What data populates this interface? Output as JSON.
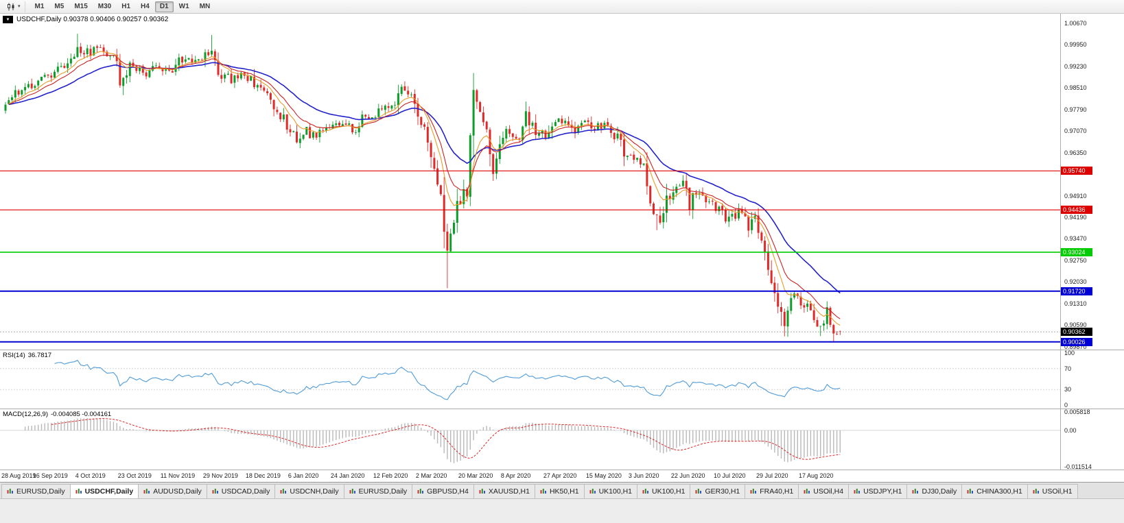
{
  "toolbar": {
    "chart_type_caret": "▾",
    "periods": [
      "M1",
      "M5",
      "M15",
      "M30",
      "H1",
      "H4",
      "D1",
      "W1",
      "MN"
    ],
    "active_period": "D1"
  },
  "chart": {
    "marker": "▼",
    "symbol_period": "USDCHF,Daily",
    "ohlc": "0.90378 0.90406 0.90257 0.90362"
  },
  "rsi_panel": {
    "label": "RSI(14)",
    "value": "36.7817"
  },
  "macd_panel": {
    "label": "MACD(12,26,9)",
    "values": "-0.004085 -0.004161"
  },
  "tabs": [
    {
      "label": "EURUSD,Daily"
    },
    {
      "label": "USDCHF,Daily",
      "active": true
    },
    {
      "label": "AUDUSD,Daily"
    },
    {
      "label": "USDCAD,Daily"
    },
    {
      "label": "USDCNH,Daily"
    },
    {
      "label": "EURUSD,Daily"
    },
    {
      "label": "GBPUSD,H4"
    },
    {
      "label": "XAUUSD,H1"
    },
    {
      "label": "HK50,H1"
    },
    {
      "label": "UK100,H1"
    },
    {
      "label": "UK100,H1"
    },
    {
      "label": "GER30,H1"
    },
    {
      "label": "FRA40,H1"
    },
    {
      "label": "USOil,H4"
    },
    {
      "label": "USDJPY,H1"
    },
    {
      "label": "DJ30,Daily"
    },
    {
      "label": "CHINA300,H1"
    },
    {
      "label": "USOil,H1"
    }
  ],
  "chart_data": {
    "type": "candlestick",
    "symbol": "USDCHF",
    "timeframe": "Daily",
    "seed": 11,
    "total_bars": 256,
    "bars_per_label": 13,
    "first_label_bar": 1,
    "last_ohlc": {
      "open": 0.90378,
      "high": 0.90406,
      "low": 0.90257,
      "close": 0.90362
    },
    "current_price": 0.90362,
    "x_labels": [
      "28 Aug 2019",
      "16 Sep 2019",
      "4 Oct 2019",
      "23 Oct 2019",
      "11 Nov 2019",
      "29 Nov 2019",
      "18 Dec 2019",
      "6 Jan 2020",
      "24 Jan 2020",
      "12 Feb 2020",
      "2 Mar 2020",
      "20 Mar 2020",
      "8 Apr 2020",
      "27 Apr 2020",
      "15 May 2020",
      "3 Jun 2020",
      "22 Jun 2020",
      "10 Jul 2020",
      "29 Jul 2020",
      "17 Aug 2020"
    ],
    "y_axis": {
      "min": 0.8977,
      "max": 1.00991,
      "ticks": [
        1.0067,
        0.9995,
        0.9923,
        0.9851,
        0.9779,
        0.9707,
        0.9635,
        0.9563,
        0.9491,
        0.9419,
        0.9347,
        0.9275,
        0.9203,
        0.9131,
        0.9059,
        0.8987
      ]
    },
    "price_keypoints": [
      [
        0,
        0.9795
      ],
      [
        4,
        0.9842
      ],
      [
        8,
        0.9862
      ],
      [
        12,
        0.9885
      ],
      [
        16,
        0.9915
      ],
      [
        20,
        0.9945
      ],
      [
        23,
        0.9985
      ],
      [
        26,
        0.996
      ],
      [
        29,
        0.999
      ],
      [
        33,
        0.9945
      ],
      [
        36,
        0.9865
      ],
      [
        39,
        0.993
      ],
      [
        43,
        0.9898
      ],
      [
        47,
        0.993
      ],
      [
        50,
        0.9902
      ],
      [
        53,
        0.9938
      ],
      [
        56,
        0.9952
      ],
      [
        59,
        0.9938
      ],
      [
        63,
        0.9975
      ],
      [
        66,
        0.99
      ],
      [
        69,
        0.9878
      ],
      [
        72,
        0.989
      ],
      [
        75,
        0.988
      ],
      [
        78,
        0.9842
      ],
      [
        81,
        0.9805
      ],
      [
        84,
        0.976
      ],
      [
        87,
        0.97
      ],
      [
        89,
        0.9682
      ],
      [
        91,
        0.972
      ],
      [
        94,
        0.969
      ],
      [
        97,
        0.971
      ],
      [
        100,
        0.9725
      ],
      [
        103,
        0.9738
      ],
      [
        106,
        0.9708
      ],
      [
        109,
        0.9745
      ],
      [
        112,
        0.976
      ],
      [
        115,
        0.9775
      ],
      [
        118,
        0.98
      ],
      [
        121,
        0.9848
      ],
      [
        124,
        0.983
      ],
      [
        126,
        0.9778
      ],
      [
        128,
        0.97
      ],
      [
        130,
        0.9645
      ],
      [
        132,
        0.956
      ],
      [
        134,
        0.94
      ],
      [
        135,
        0.929
      ],
      [
        136,
        0.938
      ],
      [
        138,
        0.945
      ],
      [
        140,
        0.952
      ],
      [
        141,
        0.948
      ],
      [
        143,
        0.9845
      ],
      [
        145,
        0.9775
      ],
      [
        147,
        0.969
      ],
      [
        149,
        0.9582
      ],
      [
        151,
        0.9635
      ],
      [
        153,
        0.9702
      ],
      [
        156,
        0.9672
      ],
      [
        159,
        0.9756
      ],
      [
        162,
        0.9712
      ],
      [
        165,
        0.9682
      ],
      [
        168,
        0.9736
      ],
      [
        171,
        0.9744
      ],
      [
        174,
        0.9702
      ],
      [
        177,
        0.974
      ],
      [
        180,
        0.9718
      ],
      [
        183,
        0.973
      ],
      [
        186,
        0.9698
      ],
      [
        189,
        0.9642
      ],
      [
        192,
        0.9612
      ],
      [
        195,
        0.96
      ],
      [
        197,
        0.9492
      ],
      [
        199,
        0.9398
      ],
      [
        201,
        0.945
      ],
      [
        204,
        0.952
      ],
      [
        207,
        0.9548
      ],
      [
        209,
        0.9472
      ],
      [
        212,
        0.9505
      ],
      [
        215,
        0.9468
      ],
      [
        218,
        0.9448
      ],
      [
        221,
        0.9412
      ],
      [
        224,
        0.9438
      ],
      [
        227,
        0.9392
      ],
      [
        229,
        0.9412
      ],
      [
        231,
        0.933
      ],
      [
        233,
        0.9258
      ],
      [
        235,
        0.9178
      ],
      [
        237,
        0.909
      ],
      [
        238,
        0.9072
      ],
      [
        240,
        0.9138
      ],
      [
        242,
        0.9162
      ],
      [
        244,
        0.9128
      ],
      [
        246,
        0.9082
      ],
      [
        248,
        0.906
      ],
      [
        249,
        0.904
      ],
      [
        251,
        0.9098
      ],
      [
        253,
        0.9055
      ],
      [
        255,
        0.90362
      ]
    ],
    "forced_wicks": [
      {
        "bar": 22,
        "high": 1.0032
      },
      {
        "bar": 63,
        "high": 1.0028
      },
      {
        "bar": 121,
        "high": 0.9852
      },
      {
        "bar": 135,
        "low": 0.9182
      },
      {
        "bar": 143,
        "high": 0.9901
      },
      {
        "bar": 199,
        "low": 0.9376
      },
      {
        "bar": 237,
        "low": 0.9056
      },
      {
        "bar": 249,
        "low": 0.9022
      }
    ],
    "levels": [
      {
        "price": 0.9574,
        "color": "#dd0000",
        "width": 1.2
      },
      {
        "price": 0.94436,
        "color": "#dd0000",
        "width": 1.2
      },
      {
        "price": 0.93024,
        "color": "#00cc00",
        "width": 1.6
      },
      {
        "price": 0.9172,
        "color": "#0000d4",
        "width": 2
      },
      {
        "price": 0.90026,
        "color": "#0000d4",
        "width": 2
      }
    ],
    "moving_averages": [
      {
        "period": 30,
        "color": "#2222cc",
        "width": 1.6,
        "name": "slow-ma"
      },
      {
        "period": 13,
        "color": "#cc2222",
        "width": 1.1,
        "name": "mid-ma"
      },
      {
        "period": 8,
        "color": "#e89c28",
        "width": 1.1,
        "name": "fast-ma"
      }
    ],
    "rsi": {
      "period": 14,
      "levels": [
        70,
        30
      ],
      "scale_ticks": [
        100,
        70,
        30,
        0
      ],
      "current": 36.7817
    },
    "macd": {
      "fast": 12,
      "slow": 26,
      "signal": 9,
      "range": [
        -0.011514,
        0.005818
      ],
      "scale_ticks": [
        {
          "v": 0.005818,
          "label": "0.005818"
        },
        {
          "v": 0,
          "label": "0.00"
        },
        {
          "v": -0.011514,
          "label": "-0.011514"
        }
      ],
      "current_macd": -0.004085,
      "current_signal": -0.004161
    },
    "colors": {
      "up": "#0e9c2b",
      "down": "#e02929",
      "rsi": "#4f9bd8",
      "macd_hist": "#b8b8b8",
      "macd_signal": "#dd2222",
      "background": "#ffffff"
    }
  }
}
